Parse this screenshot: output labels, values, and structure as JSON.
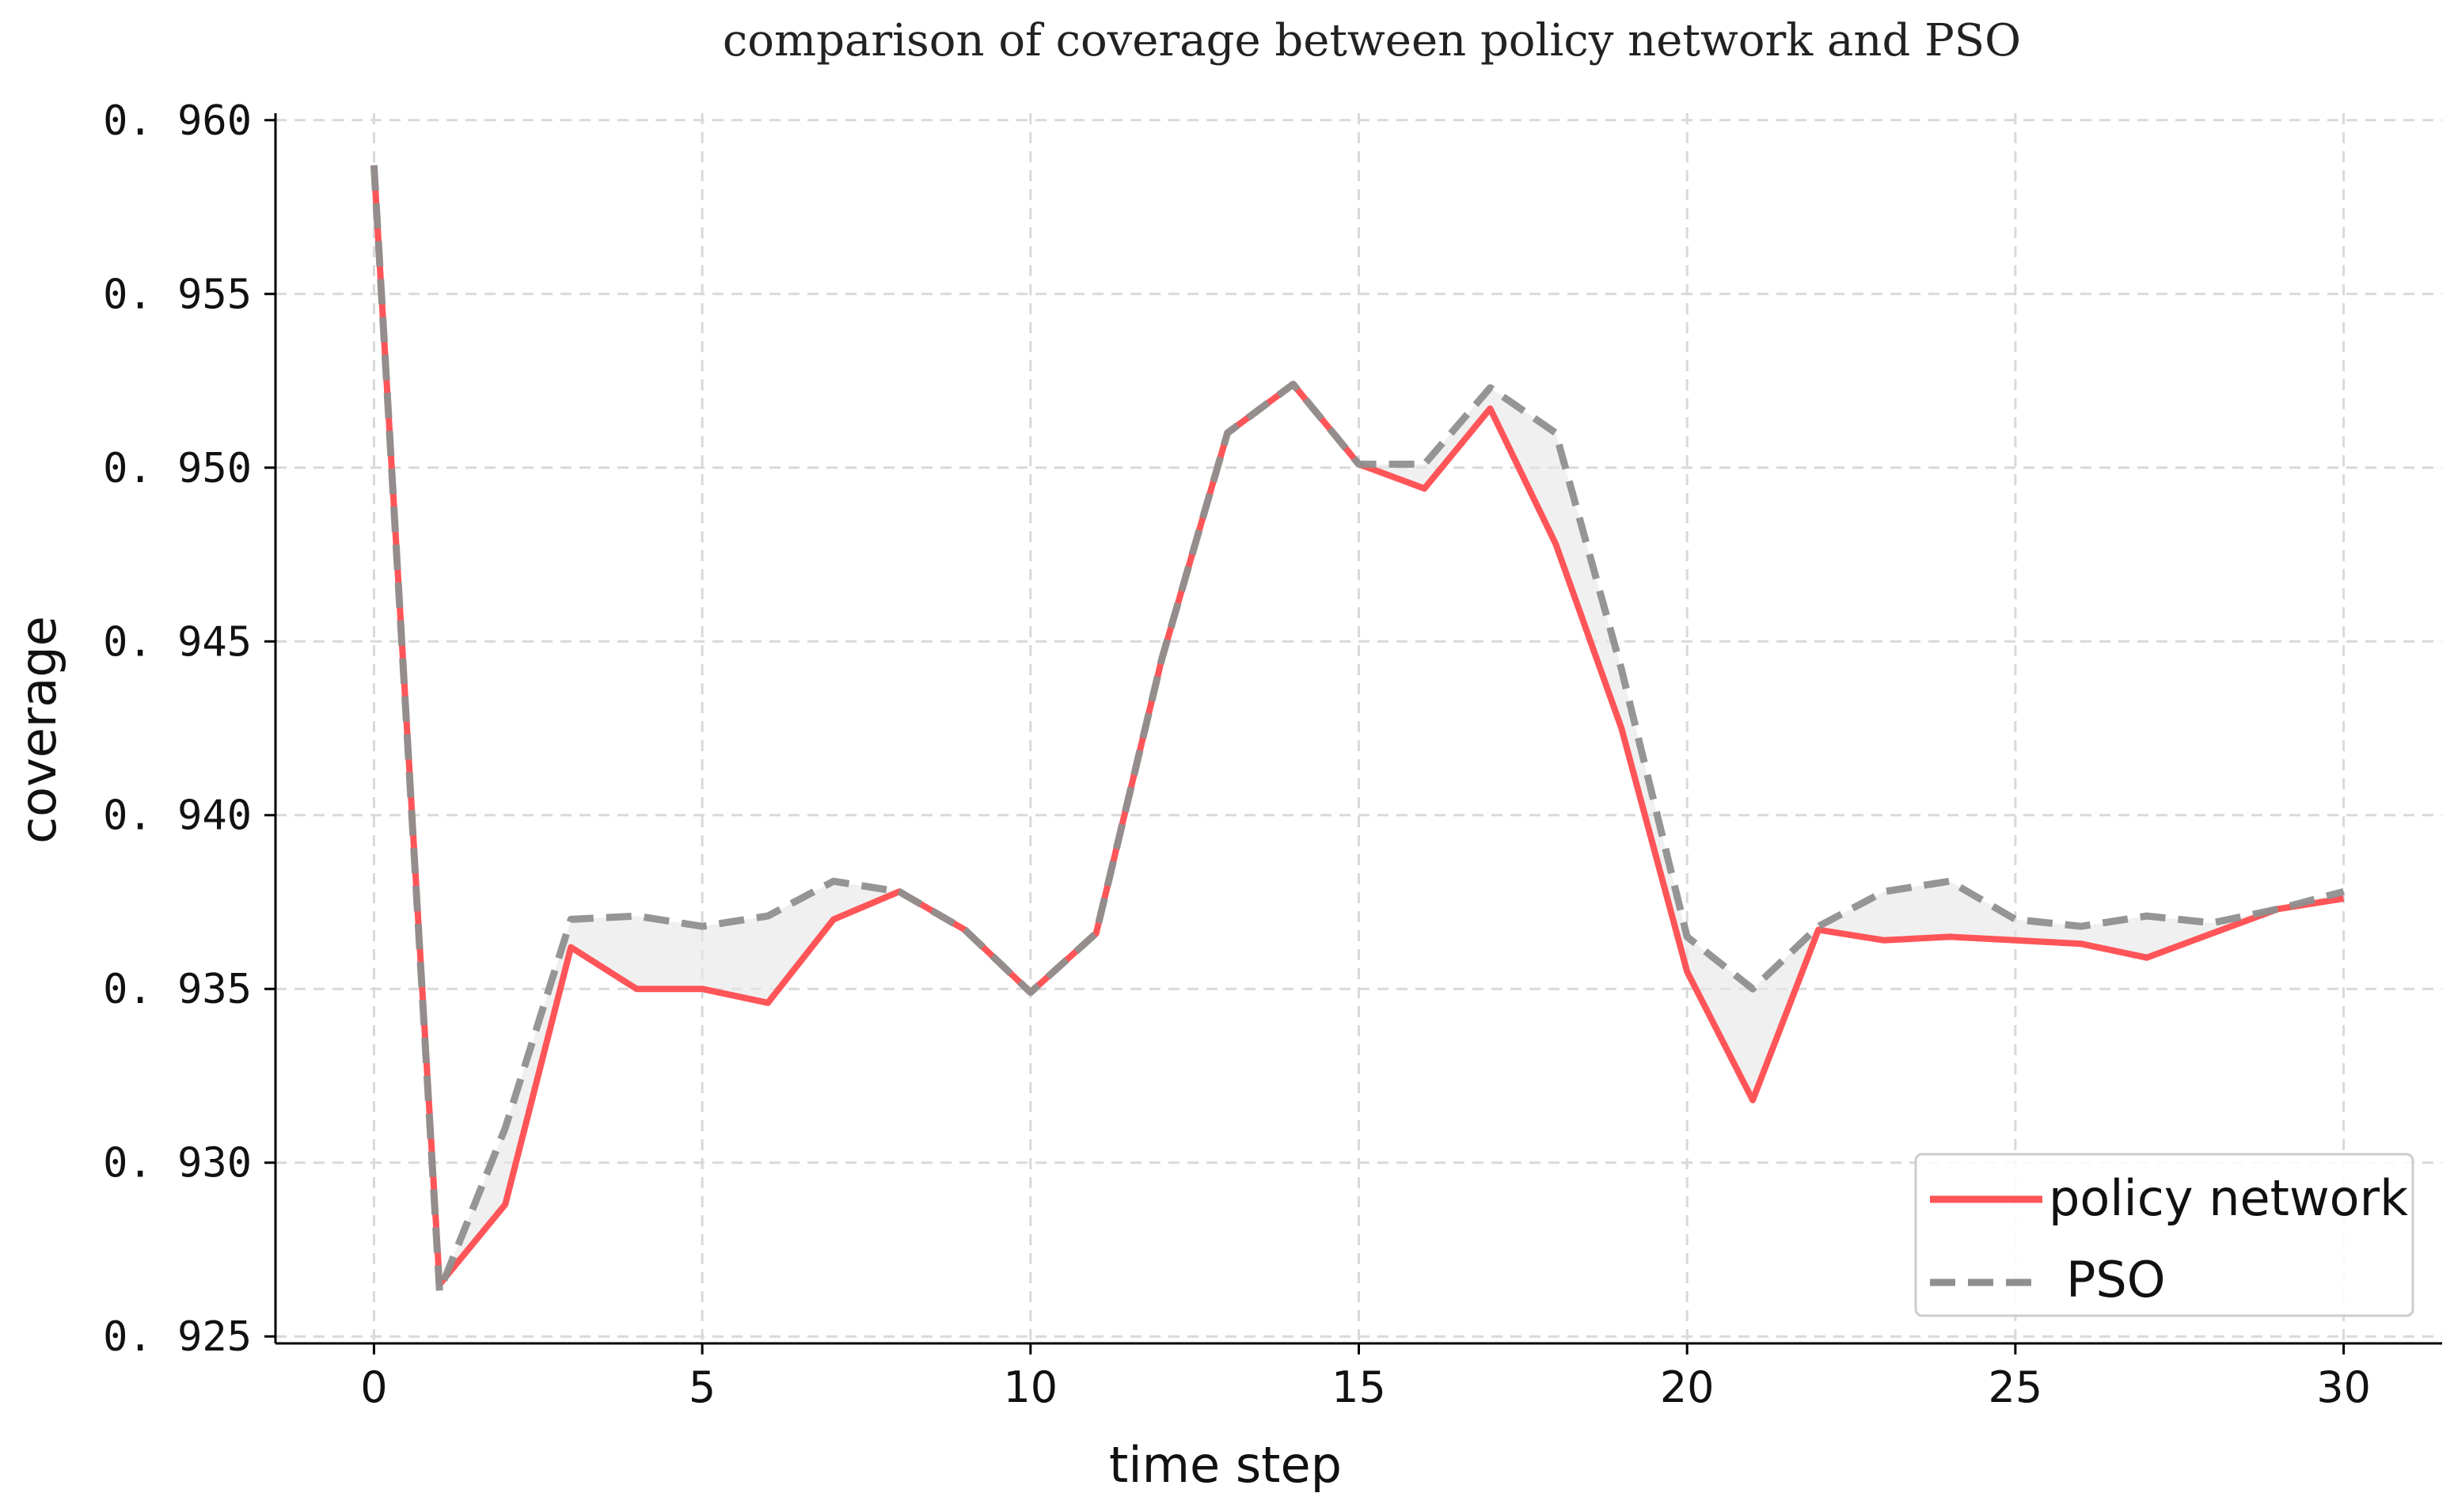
{
  "chart_data": {
    "type": "line",
    "title": "comparison of coverage between policy network and PSO",
    "xlabel": "time step",
    "ylabel": "coverage",
    "xlim": [
      -1.5,
      31.5
    ],
    "ylim": [
      0.9248,
      0.9602
    ],
    "x": [
      0,
      1,
      2,
      3,
      4,
      5,
      6,
      7,
      8,
      9,
      10,
      11,
      12,
      13,
      14,
      15,
      16,
      17,
      18,
      19,
      20,
      21,
      22,
      23,
      24,
      25,
      26,
      27,
      28,
      29,
      30
    ],
    "x_ticks": [
      0,
      5,
      10,
      15,
      20,
      25,
      30
    ],
    "x_tick_labels": [
      "0",
      "5",
      "10",
      "15",
      "20",
      "25",
      "30"
    ],
    "y_ticks": [
      0.925,
      0.93,
      0.935,
      0.94,
      0.945,
      0.95,
      0.955,
      0.96
    ],
    "y_tick_labels": [
      "0. 925",
      "0. 930",
      "0. 935",
      "0. 940",
      "0. 945",
      "0. 950",
      "0. 955",
      "0. 960"
    ],
    "grid": true,
    "legend_position": "bottom-right",
    "shade_between_series": true,
    "series": [
      {
        "name": "policy network",
        "color": "#ff5558",
        "style": "solid",
        "values": [
          0.9587,
          0.9265,
          0.9288,
          0.9362,
          0.935,
          0.935,
          0.9346,
          0.937,
          0.9378,
          0.9367,
          0.9349,
          0.9366,
          0.9445,
          0.951,
          0.9524,
          0.9501,
          0.9494,
          0.9517,
          0.9478,
          0.9425,
          0.9355,
          0.9318,
          0.9367,
          0.9364,
          0.9365,
          0.9364,
          0.9363,
          0.9359,
          0.9366,
          0.9373,
          0.9376
        ]
      },
      {
        "name": "PSO",
        "color": "#8f8f8f",
        "style": "dashed",
        "values": [
          0.9587,
          0.9263,
          0.931,
          0.937,
          0.9371,
          0.9368,
          0.9371,
          0.9381,
          0.9378,
          0.9367,
          0.9349,
          0.9366,
          0.9445,
          0.951,
          0.9524,
          0.9501,
          0.9501,
          0.9523,
          0.951,
          0.9442,
          0.9365,
          0.935,
          0.9368,
          0.9378,
          0.9381,
          0.937,
          0.9368,
          0.9371,
          0.9369,
          0.9373,
          0.9378
        ]
      }
    ]
  }
}
